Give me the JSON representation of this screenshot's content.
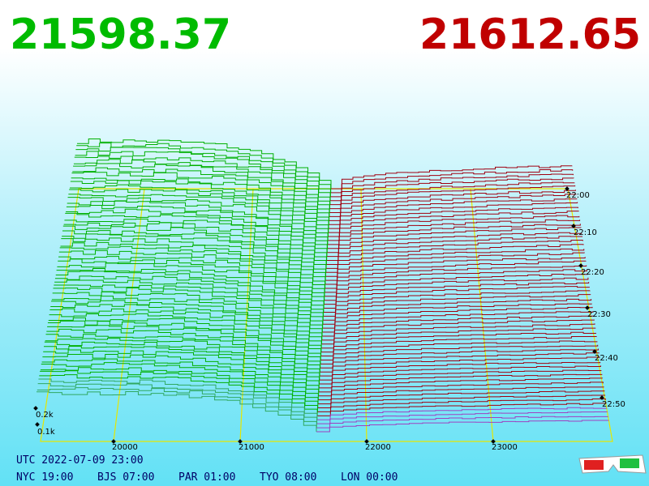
{
  "prices": {
    "bid": "21598.37",
    "ask": "21612.65"
  },
  "price_axis": [
    "20000",
    "21000",
    "22000",
    "23000"
  ],
  "time_axis": [
    "22:00",
    "22:10",
    "22:20",
    "22:30",
    "22:40",
    "22:50"
  ],
  "depth_axis": [
    "0.2k",
    "0.1k"
  ],
  "utc": "UTC 2022-07-09 23:00",
  "clocks": [
    "NYC 19:00",
    "BJS 07:00",
    "PAR 01:00",
    "TYO 08:00",
    "LON 00:00"
  ]
}
